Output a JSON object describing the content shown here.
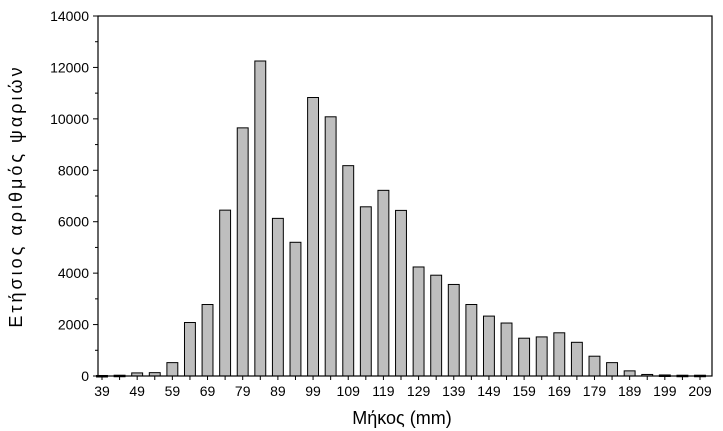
{
  "chart_data": {
    "type": "bar",
    "xlabel": "Μήκος (mm)",
    "ylabel": "Ετήσιος αριθμός ψαριών",
    "x": [
      39,
      44,
      49,
      54,
      59,
      64,
      69,
      74,
      79,
      84,
      89,
      94,
      99,
      104,
      109,
      114,
      119,
      124,
      129,
      134,
      139,
      144,
      149,
      154,
      159,
      164,
      169,
      174,
      179,
      184,
      189,
      194,
      199,
      204,
      209
    ],
    "values": [
      20,
      30,
      120,
      130,
      520,
      2080,
      2780,
      6450,
      9650,
      12250,
      6130,
      5200,
      10830,
      10080,
      8180,
      6580,
      7220,
      6440,
      4240,
      3920,
      3560,
      2780,
      2330,
      2060,
      1470,
      1520,
      1680,
      1310,
      770,
      520,
      200,
      60,
      40,
      30,
      30
    ],
    "xticks": [
      "39",
      "49",
      "59",
      "69",
      "79",
      "89",
      "99",
      "109",
      "119",
      "129",
      "139",
      "149",
      "159",
      "169",
      "179",
      "189",
      "199",
      "209"
    ],
    "yticks": [
      "0",
      "2000",
      "4000",
      "6000",
      "8000",
      "10000",
      "12000",
      "14000"
    ],
    "ylim": [
      0,
      14000
    ],
    "grid": false,
    "legend": "none",
    "bar_color": "#bebebe",
    "bar_edge_color": "#000000"
  }
}
